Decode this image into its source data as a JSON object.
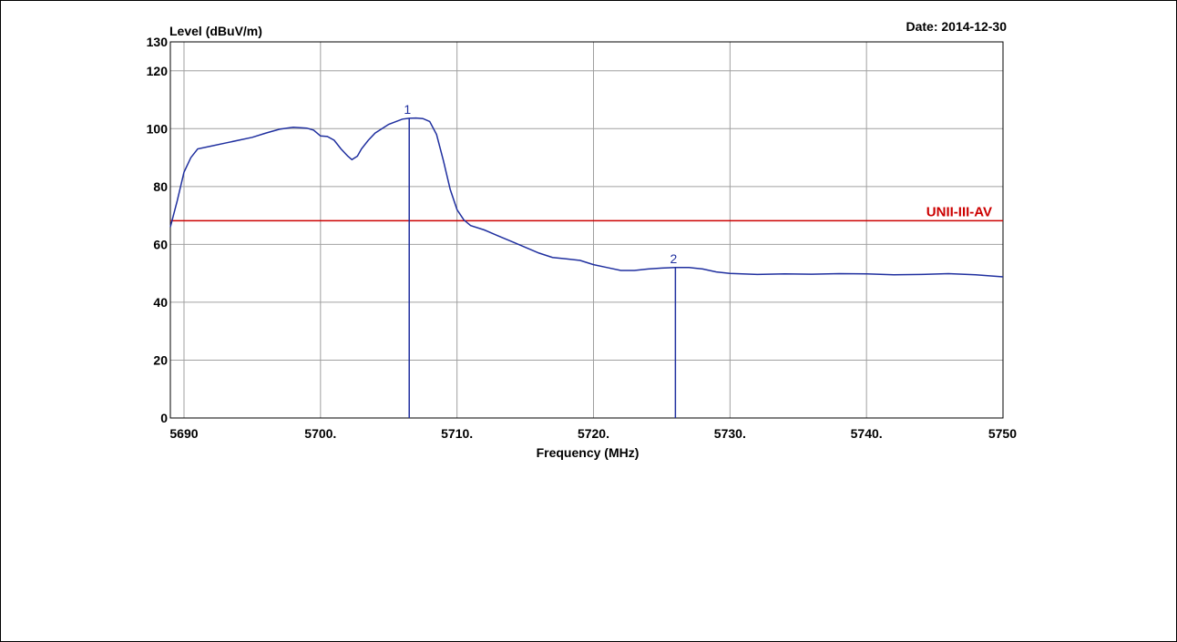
{
  "chart_data": {
    "type": "line",
    "title": "",
    "ylabel": "Level (dBuV/m)",
    "xlabel": "Frequency (MHz)",
    "date_label": "Date: 2014-12-30",
    "xlim": [
      5689,
      5750
    ],
    "ylim": [
      0,
      130
    ],
    "x_ticks": [
      {
        "value": 5690,
        "label": "5690"
      },
      {
        "value": 5700,
        "label": "5700."
      },
      {
        "value": 5710,
        "label": "5710."
      },
      {
        "value": 5720,
        "label": "5720."
      },
      {
        "value": 5730,
        "label": "5730."
      },
      {
        "value": 5740,
        "label": "5740."
      },
      {
        "value": 5750,
        "label": "5750"
      }
    ],
    "y_ticks": [
      {
        "value": 0,
        "label": "0"
      },
      {
        "value": 20,
        "label": "20"
      },
      {
        "value": 40,
        "label": "40"
      },
      {
        "value": 60,
        "label": "60"
      },
      {
        "value": 80,
        "label": "80"
      },
      {
        "value": 100,
        "label": "100"
      },
      {
        "value": 120,
        "label": "120"
      },
      {
        "value": 130,
        "label": "130"
      }
    ],
    "grid": true,
    "limit_line": {
      "value": 68.2,
      "label": "UNII-III-AV",
      "color": "#cc0000"
    },
    "series": [
      {
        "color": "#1f2f9f",
        "x": [
          5689,
          5689.5,
          5690,
          5690.5,
          5691,
          5692,
          5693,
          5694,
          5695,
          5696,
          5697,
          5698,
          5699,
          5699.5,
          5700,
          5700.5,
          5701,
          5701.5,
          5702,
          5702.3,
          5702.7,
          5703,
          5703.5,
          5704,
          5705,
          5706,
          5706.5,
          5707,
          5707.5,
          5708,
          5708.5,
          5709,
          5709.5,
          5710,
          5710.5,
          5711,
          5712,
          5713,
          5714,
          5715,
          5716,
          5717,
          5718,
          5719,
          5720,
          5721,
          5722,
          5723,
          5724,
          5725,
          5726,
          5727,
          5728,
          5729,
          5730,
          5732,
          5734,
          5736,
          5738,
          5740,
          5742,
          5744,
          5746,
          5748,
          5750
        ],
        "y": [
          66,
          75,
          85,
          90,
          93,
          94,
          95,
          96,
          97,
          98.5,
          99.8,
          100.5,
          100.2,
          99.5,
          97.5,
          97.3,
          96,
          93,
          90.5,
          89.3,
          90.5,
          93,
          96,
          98.5,
          101.5,
          103.3,
          103.6,
          103.7,
          103.5,
          102.5,
          98,
          89,
          79,
          72,
          68.5,
          66.5,
          65,
          63,
          61,
          59,
          57,
          55.5,
          55,
          54.5,
          53,
          52,
          51,
          51,
          51.5,
          51.8,
          52,
          52,
          51.5,
          50.5,
          50,
          49.6,
          49.8,
          49.7,
          49.9,
          49.8,
          49.5,
          49.6,
          49.9,
          49.5,
          48.8
        ]
      }
    ],
    "markers": [
      {
        "label": "1",
        "x": 5706.5,
        "y": 103.6
      },
      {
        "label": "2",
        "x": 5726,
        "y": 52
      }
    ]
  }
}
